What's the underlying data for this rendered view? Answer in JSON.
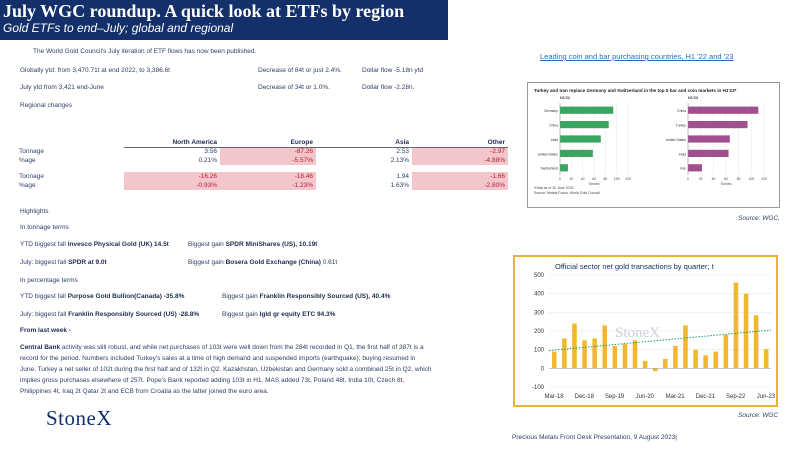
{
  "header": {
    "title": "July WGC roundup.  A quick look at ETFs by region",
    "subtitle": "Gold ETFs to end–July; global and regional"
  },
  "intro": {
    "line1": "The World Gold Council's July iteration of ETF flows has now been published.",
    "ytd_left": "Globally ytd: from 3,470.71t at end 2022, to 3,386.6t",
    "ytd_decrease": "Decrease of 84t or just 2.4%.",
    "ytd_dollar": "Dollar flow -5.18n ytd",
    "july_left": "July ytd from 3,421 end-June",
    "july_decrease": "Decrease of  34t or 1.0%.",
    "july_dollar": "Dollar flow -2.28n.",
    "regional_heading": "Regional changes"
  },
  "regional_table": {
    "columns": [
      "North America",
      "Europe",
      "Asia",
      "Other"
    ],
    "block1": [
      {
        "label": "Tonnage",
        "values": [
          "3.56",
          "-87.26",
          "2.53",
          "-2.97"
        ]
      },
      {
        "label": "%age",
        "values": [
          "0.21%",
          "-5.57%",
          "2.13%",
          "-4.88%"
        ]
      }
    ],
    "block2": [
      {
        "label": "Tonnage",
        "values": [
          "-16.26",
          "-18.46",
          "1.94",
          "-1.66"
        ]
      },
      {
        "label": "%age",
        "values": [
          "-0.93%",
          "-1.23%",
          "1.63%",
          "-2.80%"
        ]
      }
    ]
  },
  "highlights": {
    "heading": "Highlights",
    "tonnage_heading": "In tonnage terms",
    "ytd_fall_label": "YTD biggest fall",
    "ytd_fall_value": "Invesco Physical Gold (UK) 14.5t",
    "ytd_gain_label": "Biggest gain",
    "ytd_gain_value": "SPDR MiniShares (US), 10.19t",
    "july_fall_label": "July: biggest fall",
    "july_fall_value": "SPDR at 9.0t",
    "july_gain_label": "Biggest gain",
    "july_gain_value": "Bosera Gold Exchange (China)",
    "july_gain_suffix": "0.61t",
    "pct_heading": "In percentage terms",
    "pct_ytd_fall_label": "YTD biggest fall",
    "pct_ytd_fall_value": "Purpose Gold Bullion(Canada) -35.8%",
    "pct_ytd_gain_label": "Biggest gain",
    "pct_ytd_gain_value": "Franklin Responsibly Sourced (US), 40.4%",
    "pct_july_fall_label": "July: biggest fall",
    "pct_july_fall_value": "Franklin Responsibly Sourced (US) -28.8%",
    "pct_july_gain_label": "Biggest gain",
    "pct_july_gain_value": "Igld gr equity ETC 94.3%",
    "last_week": "From last week -"
  },
  "central_bank": {
    "lead": "Central Bank",
    "line1": " activity was still robust, and while net purchases of 103t were well down from the 284t recorded in Q1, the first half of 387t is a",
    "line2": "record for the period.  Numbers included Turkey's sales at a time of high demand and suspended imports (earthquake); buying resumed in",
    "line3": "June.  Turkey a net seller of 102t during the first half and of 132t in Q2.   Kazakhstan, Uzbekistan and Germany sold a combined 25t in Q2, which",
    "line4": "implies gross purchases elsewhere of 257t.  Pope's Bank reported adding 103t in H1.  MAS added 73t, Poland 48t.  India 10t, Czech 8t,",
    "line5": "Philippines 4t, Iraq 2t Qatar 2t and ECB from Croatia as the latter joined the euro area."
  },
  "logo": "StoneX",
  "chart1": {
    "title_link": "Leading coin and bar purchasing countries, H1 '22 and '23",
    "inner_title": "Turkey and Iran replace Germany and Switzerland in the top 5 bar and coin markets in H1'23*",
    "source": "Source: WGC,",
    "footnote1": "*Data as of 30 June 2023",
    "footnote2": "Source: Metals Focus, World Gold Council",
    "xlabel": "Tonnes",
    "bar_color": "#3aa560",
    "bar_color2": "#a0508f"
  },
  "chart2": {
    "title": "Official sector net gold transactions by quarter; t",
    "source": "Source: WGC",
    "watermark": "StoneX",
    "bar_color": "#f1b82d",
    "trend_color": "#1a9a6a"
  },
  "footer": "Precious Metals Front Desk Presentation, 9 August 2023|",
  "chart_data": [
    {
      "type": "bar",
      "title": "Turkey and Iran replace Germany and Switzerland in the top 5 bar and coin markets in H1'23*",
      "panel_title": "H1'22",
      "categories": [
        "Germany",
        "China",
        "India",
        "United States",
        "Switzerland"
      ],
      "values": [
        94,
        86,
        72,
        58,
        14
      ],
      "xlabel": "Tonnes",
      "xlim": [
        0,
        120
      ],
      "x_ticks": [
        "0",
        "20",
        "40",
        "60",
        "80",
        "100",
        "120"
      ],
      "orientation": "horizontal"
    },
    {
      "type": "bar",
      "panel_title": "H1'23",
      "categories": [
        "China",
        "Turkey",
        "United States",
        "India",
        "Iran"
      ],
      "values": [
        111,
        94,
        66,
        64,
        22
      ],
      "xlabel": "Tonnes",
      "xlim": [
        0,
        120
      ],
      "x_ticks": [
        "0",
        "20",
        "40",
        "60",
        "80",
        "100",
        "120"
      ],
      "orientation": "horizontal"
    },
    {
      "type": "bar",
      "title": "Official sector net gold transactions by quarter; t",
      "x_ticks": [
        "Mar-18",
        "Dec-18",
        "Sep-19",
        "Jun-20",
        "Mar-21",
        "Dec-21",
        "Sep-22",
        "Jun-23"
      ],
      "categories": [
        "Q1-18",
        "Q2-18",
        "Q3-18",
        "Q4-18",
        "Q1-19",
        "Q2-19",
        "Q3-19",
        "Q4-19",
        "Q1-20",
        "Q2-20",
        "Q3-20",
        "Q4-20",
        "Q1-21",
        "Q2-21",
        "Q3-21",
        "Q4-21",
        "Q1-22",
        "Q2-22",
        "Q3-22",
        "Q4-22",
        "Q1-23",
        "Q2-23"
      ],
      "values": [
        90,
        160,
        240,
        150,
        160,
        230,
        120,
        130,
        150,
        40,
        -15,
        50,
        120,
        230,
        100,
        70,
        90,
        180,
        460,
        400,
        284,
        103
      ],
      "trend": [
        95,
        205
      ],
      "ylim": [
        -100,
        500
      ],
      "y_ticks": [
        "-100",
        "0",
        "100",
        "200",
        "300",
        "400",
        "500"
      ]
    }
  ]
}
